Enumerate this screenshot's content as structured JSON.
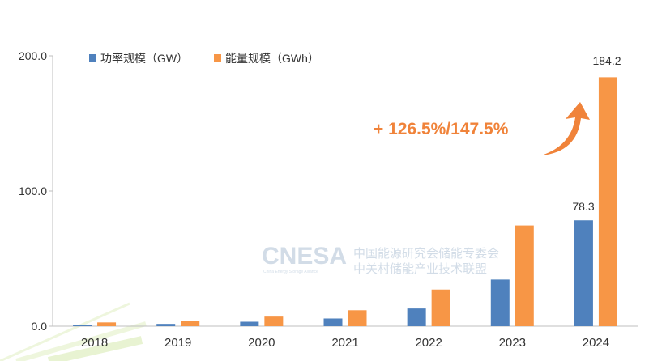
{
  "chart_data": {
    "type": "bar",
    "categories": [
      "2018",
      "2019",
      "2020",
      "2021",
      "2022",
      "2023",
      "2024"
    ],
    "series": [
      {
        "name": "功率规模（GW）",
        "color": "#4f81bd",
        "values": [
          1.0,
          1.7,
          3.3,
          5.7,
          13.1,
          34.5,
          78.3
        ]
      },
      {
        "name": "能量规模（GWh）",
        "color": "#f79646",
        "values": [
          2.8,
          4.1,
          7.1,
          11.8,
          27.1,
          74.5,
          184.2
        ]
      }
    ],
    "ylim": [
      0,
      200
    ],
    "yticks": [
      "0.0",
      "100.0",
      "200.0"
    ],
    "data_labels": {
      "blue_2024": "78.3",
      "orange_2024": "184.2"
    },
    "annotation": "+ 126.5%/147.5%",
    "legend_position": "top-left",
    "grid": false
  },
  "watermark": {
    "logo": "CNESA",
    "sub": "China Energy Storage Alliance",
    "line1": "中国能源研究会储能专委会",
    "line2": "中关村储能产业技术联盟"
  }
}
